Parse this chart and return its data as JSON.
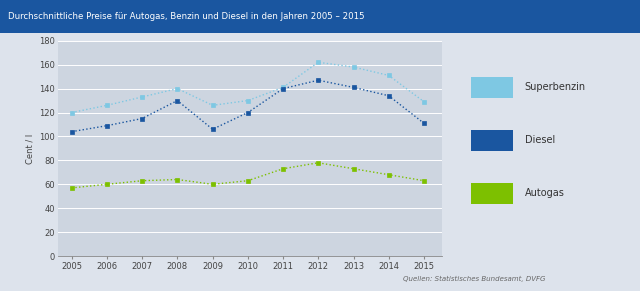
{
  "title": "Durchschnittliche Preise für Autogas, Benzin und Diesel in den Jahren 2005 – 2015",
  "title_bg_color": "#1a56a0",
  "title_text_color": "#ffffff",
  "ylabel": "Cent / l",
  "chart_bg_color": "#cdd5e0",
  "outer_bg_color": "#dde3ec",
  "source_text": "Quellen: Statistisches Bundesamt, DVFG",
  "years": [
    2005,
    2006,
    2007,
    2008,
    2009,
    2010,
    2011,
    2012,
    2013,
    2014,
    2015
  ],
  "superbenzin": [
    120,
    126,
    133,
    140,
    126,
    130,
    141,
    162,
    158,
    151,
    129
  ],
  "diesel": [
    104,
    109,
    115,
    130,
    106,
    120,
    140,
    147,
    141,
    134,
    111
  ],
  "autogas": [
    57,
    60,
    63,
    64,
    60,
    63,
    73,
    78,
    73,
    68,
    63
  ],
  "superbenzin_color": "#7ec8e3",
  "diesel_color": "#1a56a0",
  "autogas_color": "#7dc000",
  "ylim": [
    0,
    180
  ],
  "yticks": [
    0,
    20,
    40,
    60,
    80,
    100,
    120,
    140,
    160,
    180
  ],
  "legend_labels": [
    "Superbenzin",
    "Diesel",
    "Autogas"
  ]
}
